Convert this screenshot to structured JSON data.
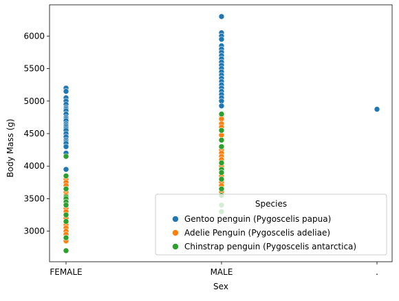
{
  "chart_data": {
    "type": "scatter",
    "xlabel": "Sex",
    "ylabel": "Body Mass (g)",
    "categories": [
      "FEMALE",
      "MALE",
      "."
    ],
    "ylim": [
      2530,
      6480
    ],
    "yticks": [
      3000,
      3500,
      4000,
      4500,
      5000,
      5500,
      6000
    ],
    "grid": false,
    "legend": {
      "title": "Species",
      "placement": "lower-right",
      "entries": [
        "Gentoo penguin (Pygoscelis papua)",
        "Adelie Penguin (Pygoscelis adeliae)",
        "Chinstrap penguin (Pygoscelis antarctica)"
      ]
    },
    "series": [
      {
        "name": "Gentoo penguin (Pygoscelis papua)",
        "color": "#1f77b4",
        "points": [
          {
            "x": "FEMALE",
            "y": [
              5200,
              5150,
              5050,
              5000,
              4950,
              4900,
              4875,
              4850,
              4800,
              4750,
              4725,
              4700,
              4650,
              4625,
              4600,
              4575,
              4550,
              4500,
              4450,
              4400,
              4375,
              4350,
              4300,
              4200,
              3950
            ]
          },
          {
            "x": "MALE",
            "y": [
              6300,
              6050,
              6000,
              5950,
              5850,
              5800,
              5750,
              5700,
              5650,
              5600,
              5550,
              5500,
              5450,
              5400,
              5350,
              5300,
              5250,
              5200,
              5150,
              5100,
              5050,
              5000,
              4925
            ]
          },
          {
            "x": ".",
            "y": [
              4875
            ]
          }
        ]
      },
      {
        "name": "Adelie Penguin (Pygoscelis adeliae)",
        "color": "#ff7f0e",
        "points": [
          {
            "x": "FEMALE",
            "y": [
              3800,
              3750,
              3700,
              3650,
              3600,
              3550,
              3500,
              3450,
              3400,
              3350,
              3300,
              3250,
              3200,
              3150,
              3100,
              3050,
              3000,
              2950,
              2900,
              2850
            ]
          },
          {
            "x": "MALE",
            "y": [
              4775,
              4725,
              4650,
              4600,
              4550,
              4475,
              4400,
              4300,
              4250,
              4200,
              4150,
              4100,
              4050,
              4000,
              3950,
              3900,
              3850,
              3800,
              3750,
              3700,
              3650,
              3600,
              3550
            ]
          }
        ]
      },
      {
        "name": "Chinstrap penguin (Pygoscelis antarctica)",
        "color": "#2ca02c",
        "points": [
          {
            "x": "FEMALE",
            "y": [
              4150,
              3850,
              3650,
              3525,
              3500,
              3450,
              3400,
              3250,
              3150,
              2900,
              2700
            ]
          },
          {
            "x": "MALE",
            "y": [
              4800,
              4550,
              4400,
              4300,
              4050,
              3950,
              3900,
              3800,
              3650,
              3550,
              3400,
              3300
            ]
          }
        ]
      }
    ]
  }
}
